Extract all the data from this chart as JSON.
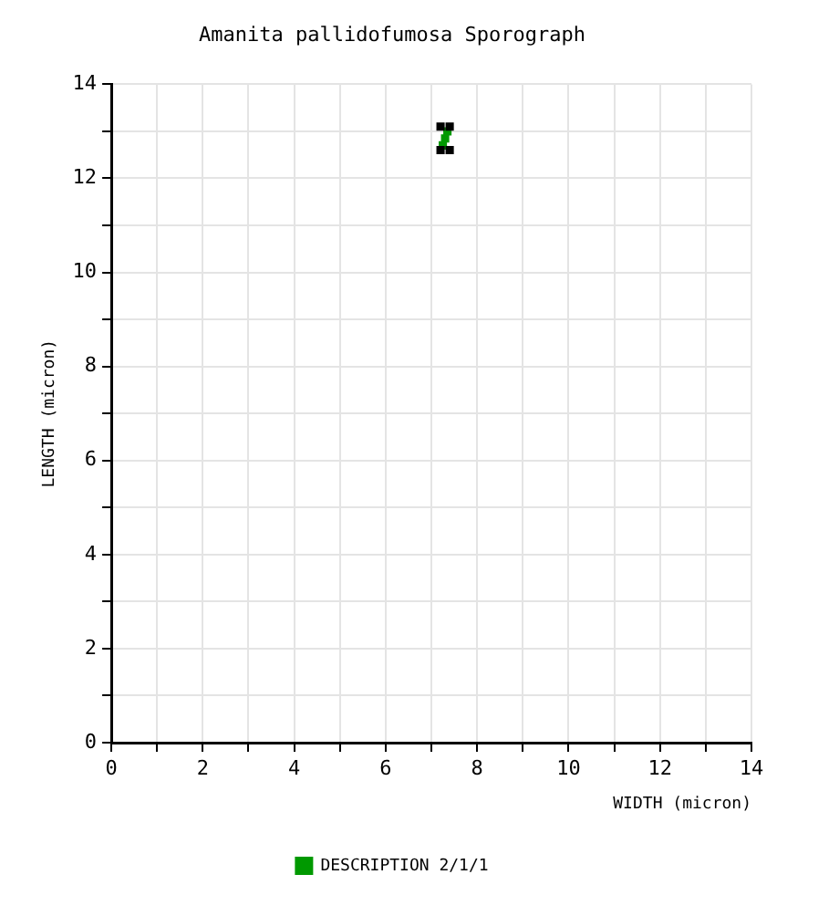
{
  "chart_data": {
    "type": "scatter",
    "title": "Amanita pallidofumosa Sporograph",
    "xlabel": "WIDTH (micron)",
    "ylabel": "LENGTH (micron)",
    "xlim": [
      0,
      14
    ],
    "ylim": [
      0,
      14
    ],
    "xticks": [
      0,
      {
        "value": 1,
        "label": null
      },
      2,
      {
        "value": 3,
        "label": null
      },
      4,
      {
        "value": 5,
        "label": null
      },
      6,
      {
        "value": 7,
        "label": null
      },
      8,
      {
        "value": 9,
        "label": null
      },
      10,
      {
        "value": 11,
        "label": null
      },
      12,
      {
        "value": 13,
        "label": null
      },
      14
    ],
    "yticks": [
      0,
      {
        "value": 1,
        "label": null
      },
      2,
      {
        "value": 3,
        "label": null
      },
      4,
      {
        "value": 5,
        "label": null
      },
      6,
      {
        "value": 7,
        "label": null
      },
      8,
      {
        "value": 9,
        "label": null
      },
      10,
      {
        "value": 11,
        "label": null
      },
      12,
      {
        "value": 13,
        "label": null
      },
      14
    ],
    "grid": true,
    "legend": "bottom",
    "marker": "square",
    "series": [
      {
        "color": "#000000",
        "x": [
          7.2,
          7.4,
          7.2,
          7.4
        ],
        "values": [
          13.1,
          13.1,
          12.6,
          12.6
        ]
      },
      {
        "name": "DESCRIPTION 2/1/1",
        "color": "#009900",
        "x": [
          7.25,
          7.3,
          7.35
        ],
        "values": [
          12.7,
          12.85,
          13.0
        ]
      }
    ]
  }
}
